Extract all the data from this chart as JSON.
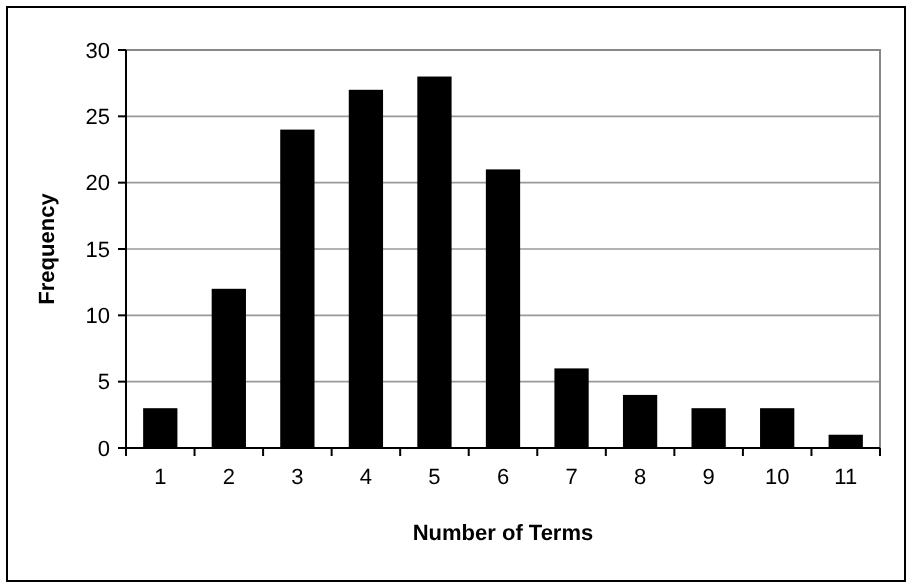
{
  "chart_data": {
    "type": "bar",
    "xlabel": "Number of Terms",
    "ylabel": "Frequency",
    "categories": [
      "1",
      "2",
      "3",
      "4",
      "5",
      "6",
      "7",
      "8",
      "9",
      "10",
      "11"
    ],
    "values": [
      3,
      12,
      24,
      27,
      28,
      21,
      6,
      4,
      3,
      3,
      1
    ],
    "color": "#000000",
    "ylim": [
      0,
      30
    ],
    "yticks": [
      0,
      5,
      10,
      15,
      20,
      25,
      30
    ],
    "grid": "y"
  }
}
